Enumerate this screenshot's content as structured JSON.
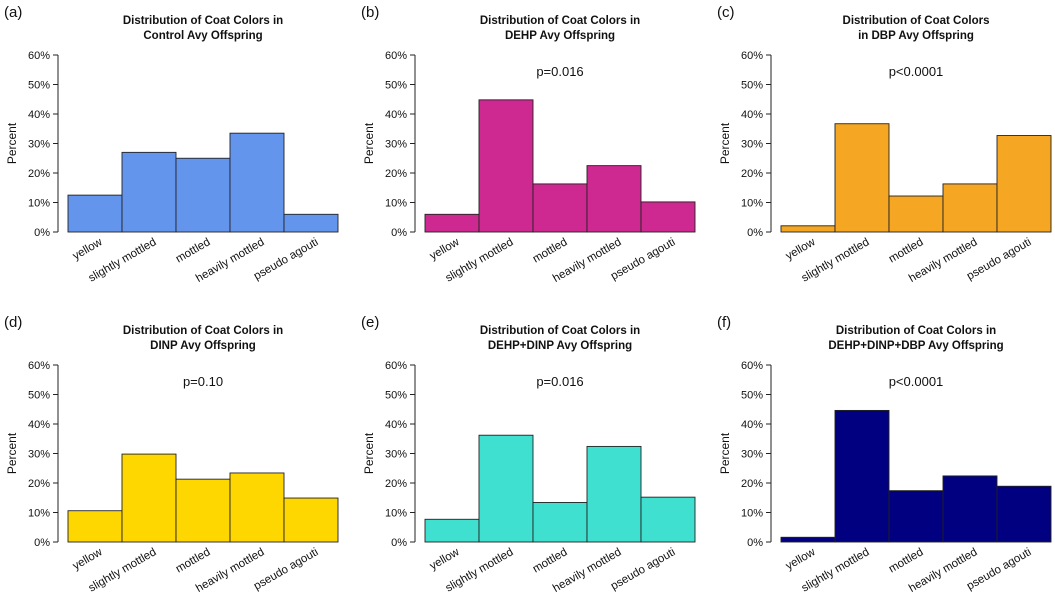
{
  "figure_caption": "",
  "chart_data": [
    {
      "panel": "(a)",
      "type": "bar",
      "title": "Distribution of Coat Colors in\nControl Avy Offspring",
      "pvalue": "",
      "categories": [
        "yellow",
        "slightly mottled",
        "mottled",
        "heavily mottled",
        "pseudo agouti"
      ],
      "values": [
        12.5,
        27,
        25,
        33.5,
        6
      ],
      "ylabel": "Percent",
      "xlabel": "",
      "ylim": [
        0,
        60
      ],
      "yticks": [
        "0%",
        "10%",
        "20%",
        "30%",
        "40%",
        "50%",
        "60%"
      ],
      "color": "#6495ED"
    },
    {
      "panel": "(b)",
      "type": "bar",
      "title": "Distribution of Coat Colors in\nDEHP Avy Offspring",
      "pvalue": "p=0.016",
      "categories": [
        "yellow",
        "slightly mottled",
        "mottled",
        "heavily mottled",
        "pseudo agouti"
      ],
      "values": [
        6,
        44.8,
        16.3,
        22.5,
        10.2
      ],
      "ylabel": "Percent",
      "xlabel": "",
      "ylim": [
        0,
        60
      ],
      "yticks": [
        "0%",
        "10%",
        "20%",
        "30%",
        "40%",
        "50%",
        "60%"
      ],
      "color": "#CD2990"
    },
    {
      "panel": "(c)",
      "type": "bar",
      "title": "Distribution of Coat Colors\nin DBP Avy Offspring",
      "pvalue": "p<0.0001",
      "categories": [
        "yellow",
        "slightly mottled",
        "mottled",
        "heavily mottled",
        "pseudo agouti"
      ],
      "values": [
        2.1,
        36.7,
        12.2,
        16.3,
        32.7
      ],
      "ylabel": "Percent",
      "xlabel": "",
      "ylim": [
        0,
        60
      ],
      "yticks": [
        "0%",
        "10%",
        "20%",
        "30%",
        "40%",
        "50%",
        "60%"
      ],
      "color": "#F5A623"
    },
    {
      "panel": "(d)",
      "type": "bar",
      "title": "Distribution of Coat Colors in\nDINP Avy Offspring",
      "pvalue": "p=0.10",
      "categories": [
        "yellow",
        "slightly mottled",
        "mottled",
        "heavily mottled",
        "pseudo agouti"
      ],
      "values": [
        10.6,
        29.8,
        21.3,
        23.4,
        14.9
      ],
      "ylabel": "Percent",
      "xlabel": "",
      "ylim": [
        0,
        60
      ],
      "yticks": [
        "0%",
        "10%",
        "20%",
        "30%",
        "40%",
        "50%",
        "60%"
      ],
      "color": "#FFD700"
    },
    {
      "panel": "(e)",
      "type": "bar",
      "title": "Distribution of Coat Colors in\nDEHP+DINP Avy Offspring",
      "pvalue": "p=0.016",
      "categories": [
        "yellow",
        "slightly mottled",
        "mottled",
        "heavily mottled",
        "pseudo agouti"
      ],
      "values": [
        7.7,
        36.2,
        13.4,
        32.4,
        15.2
      ],
      "ylabel": "Percent",
      "xlabel": "",
      "ylim": [
        0,
        60
      ],
      "yticks": [
        "0%",
        "10%",
        "20%",
        "30%",
        "40%",
        "50%",
        "60%"
      ],
      "color": "#40E0D0"
    },
    {
      "panel": "(f)",
      "type": "bar",
      "title": "Distribution of Coat Colors in\nDEHP+DINP+DBP Avy Offspring",
      "pvalue": "p<0.0001",
      "categories": [
        "yellow",
        "slightly mottled",
        "mottled",
        "heavily mottled",
        "pseudo agouti"
      ],
      "values": [
        1.6,
        44.6,
        17.4,
        22.4,
        18.9
      ],
      "ylabel": "Percent",
      "xlabel": "",
      "ylim": [
        0,
        60
      ],
      "yticks": [
        "0%",
        "10%",
        "20%",
        "30%",
        "40%",
        "50%",
        "60%"
      ],
      "color": "#000080"
    }
  ]
}
